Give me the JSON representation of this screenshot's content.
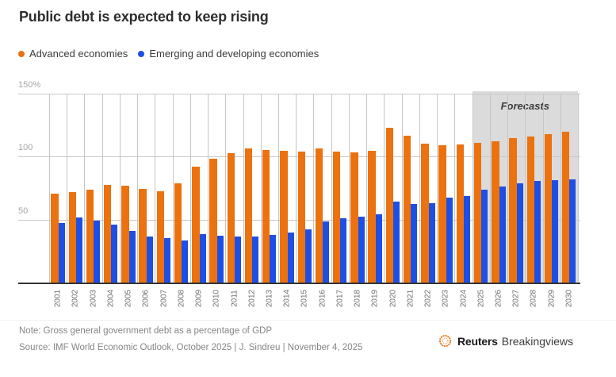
{
  "title": "Public debt is expected to keep rising",
  "legend": [
    {
      "label": "Advanced economies",
      "color": "#EB720F"
    },
    {
      "label": "Emerging and developing economies",
      "color": "#1E4FE4"
    }
  ],
  "chart_data": {
    "type": "bar",
    "title": "Public debt is expected to keep rising",
    "categories": [
      "2001",
      "2002",
      "2003",
      "2004",
      "2005",
      "2006",
      "2007",
      "2008",
      "2009",
      "2010",
      "2011",
      "2012",
      "2013",
      "2014",
      "2015",
      "2016",
      "2017",
      "2018",
      "2019",
      "2020",
      "2021",
      "2022",
      "2023",
      "2024",
      "2025",
      "2026",
      "2027",
      "2028",
      "2029",
      "2030"
    ],
    "series": [
      {
        "name": "Advanced economies",
        "color": "#EB720F",
        "values": [
          70.5,
          72,
          73.5,
          77.5,
          77,
          74.5,
          72.5,
          79,
          92,
          98.5,
          102.5,
          106.5,
          105.5,
          104.5,
          104,
          106.5,
          104,
          103.5,
          104.5,
          123,
          116.5,
          110,
          109,
          109.5,
          111,
          112.5,
          115,
          116,
          118,
          119.5
        ]
      },
      {
        "name": "Emerging and developing economies",
        "color": "#1E4FE4",
        "values": [
          47.5,
          51.5,
          49,
          46,
          41,
          36.5,
          35.5,
          33.5,
          38.5,
          37.5,
          36.5,
          36.5,
          38,
          39.5,
          42.5,
          48.5,
          51,
          52,
          54,
          64,
          62.5,
          63,
          67.5,
          69,
          73.5,
          76,
          79,
          80.5,
          81,
          82
        ]
      }
    ],
    "unit": "% of GDP",
    "ylim": [
      0,
      150
    ],
    "y_ticks": [
      {
        "label": "150%",
        "value": 150
      },
      {
        "label": "100",
        "value": 100
      },
      {
        "label": "50",
        "value": 50
      }
    ],
    "grid": true,
    "legend_position": "top",
    "forecast": {
      "label": "Forecasts",
      "start_category": "2025",
      "end_category": "2030",
      "band_color": "#DBDBDB"
    }
  },
  "footer": {
    "note": "Note: Gross general government debt as a percentage of GDP",
    "source": "Source: IMF World Economic Outlook, October 2025 | J. Sindreu | November 4, 2025"
  },
  "logo": {
    "brand_bold": "Reuters",
    "brand_regular": "Breakingviews",
    "mark_color": "#E8822D"
  }
}
